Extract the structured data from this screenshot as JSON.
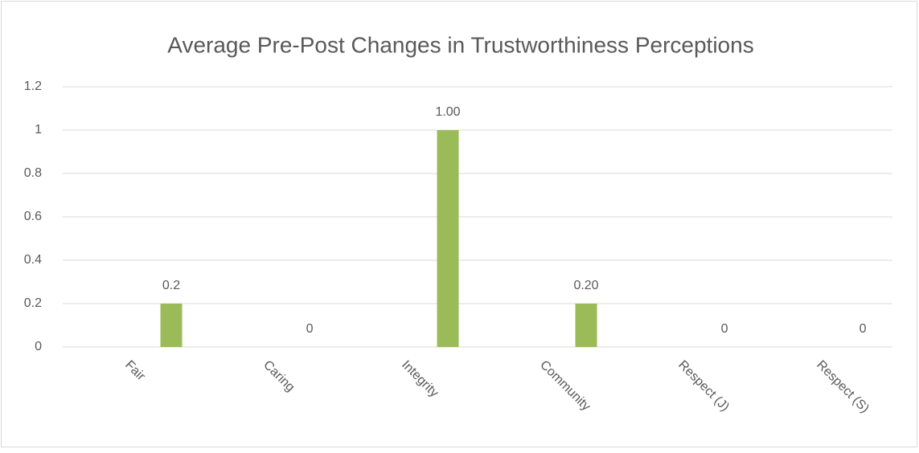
{
  "chart_data": {
    "type": "bar",
    "title": "Average Pre-Post Changes in Trustworthiness Perceptions",
    "categories": [
      "Fair",
      "Caring",
      "Integrity",
      "Community",
      "Respect (J)",
      "Respect (S)"
    ],
    "values": [
      0.2,
      0,
      1,
      0.2,
      0,
      0
    ],
    "value_labels": [
      "0.2",
      "0",
      "1.00",
      "0.20",
      "0",
      "0"
    ],
    "color": "#9bbb59",
    "ylim": [
      0,
      1.2
    ],
    "yticks": [
      0,
      0.2,
      0.4,
      0.6,
      0.8,
      1,
      1.2
    ],
    "grid": true
  }
}
